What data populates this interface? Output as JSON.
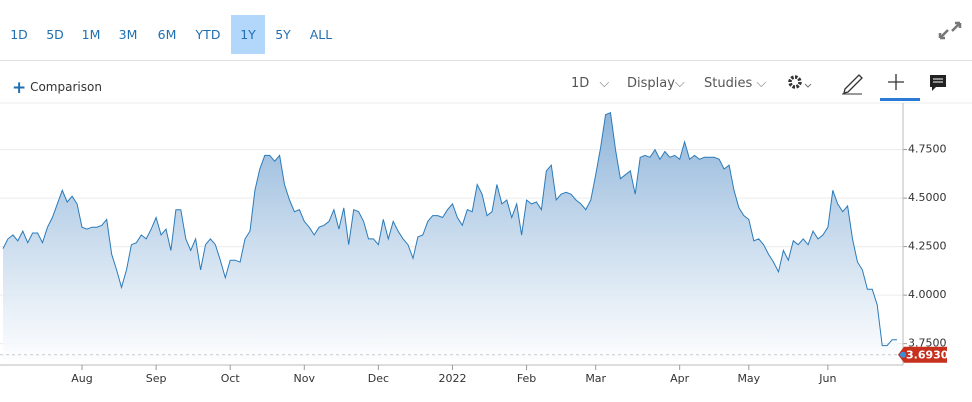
{
  "toolbar": {
    "periods": [
      "1D",
      "5D",
      "1M",
      "3M",
      "6M",
      "YTD",
      "1Y",
      "5Y",
      "ALL"
    ],
    "selected": "1Y"
  },
  "controls": {
    "comparison": "Comparison",
    "interval": "1D",
    "display": "Display",
    "studies": "Studies"
  },
  "chart_data": {
    "type": "area",
    "color": "#2b7bb9",
    "values": [
      4.24,
      4.29,
      4.31,
      4.28,
      4.33,
      4.27,
      4.32,
      4.32,
      4.27,
      4.35,
      4.4,
      4.47,
      4.54,
      4.48,
      4.51,
      4.47,
      4.35,
      4.34,
      4.35,
      4.35,
      4.36,
      4.39,
      4.21,
      4.13,
      4.04,
      4.13,
      4.26,
      4.27,
      4.31,
      4.29,
      4.34,
      4.4,
      4.31,
      4.34,
      4.23,
      4.44,
      4.44,
      4.29,
      4.23,
      4.29,
      4.13,
      4.26,
      4.29,
      4.26,
      4.18,
      4.09,
      4.18,
      4.18,
      4.17,
      4.29,
      4.33,
      4.54,
      4.65,
      4.72,
      4.72,
      4.69,
      4.72,
      4.57,
      4.49,
      4.43,
      4.44,
      4.38,
      4.35,
      4.31,
      4.35,
      4.36,
      4.38,
      4.44,
      4.34,
      4.45,
      4.26,
      4.44,
      4.43,
      4.38,
      4.29,
      4.29,
      4.26,
      4.39,
      4.29,
      4.38,
      4.33,
      4.29,
      4.26,
      4.19,
      4.3,
      4.31,
      4.38,
      4.41,
      4.41,
      4.4,
      4.44,
      4.47,
      4.4,
      4.36,
      4.44,
      4.43,
      4.57,
      4.52,
      4.41,
      4.43,
      4.57,
      4.47,
      4.49,
      4.4,
      4.47,
      4.31,
      4.49,
      4.47,
      4.48,
      4.44,
      4.64,
      4.67,
      4.49,
      4.52,
      4.53,
      4.52,
      4.49,
      4.47,
      4.44,
      4.49,
      4.62,
      4.76,
      4.93,
      4.94,
      4.75,
      4.6,
      4.62,
      4.64,
      4.52,
      4.71,
      4.72,
      4.71,
      4.75,
      4.7,
      4.74,
      4.71,
      4.72,
      4.7,
      4.79,
      4.7,
      4.72,
      4.7,
      4.71,
      4.71,
      4.71,
      4.7,
      4.65,
      4.67,
      4.54,
      4.45,
      4.41,
      4.39,
      4.28,
      4.29,
      4.26,
      4.21,
      4.17,
      4.12,
      4.23,
      4.18,
      4.28,
      4.26,
      4.29,
      4.26,
      4.33,
      4.29,
      4.31,
      4.35,
      4.54,
      4.47,
      4.43,
      4.46,
      4.29,
      4.17,
      4.13,
      4.03,
      4.03,
      3.95,
      3.74,
      3.74,
      3.77,
      3.77
    ],
    "xlim": [
      0,
      181
    ],
    "xticks": [
      {
        "value": 16,
        "label": "Aug"
      },
      {
        "value": 31,
        "label": "Sep"
      },
      {
        "value": 46,
        "label": "Oct"
      },
      {
        "value": 61,
        "label": "Nov"
      },
      {
        "value": 76,
        "label": "Dec"
      },
      {
        "value": 91,
        "label": "2022"
      },
      {
        "value": 106,
        "label": "Feb"
      },
      {
        "value": 120,
        "label": "Mar"
      },
      {
        "value": 137,
        "label": "Apr"
      },
      {
        "value": 151,
        "label": "May"
      },
      {
        "value": 167,
        "label": "Jun"
      }
    ],
    "ylim": [
      3.64,
      4.99
    ],
    "yticks": [
      {
        "value": 3.75,
        "label": "3.7500"
      },
      {
        "value": 4.0,
        "label": "4.0000"
      },
      {
        "value": 4.25,
        "label": "4.2500"
      },
      {
        "value": 4.5,
        "label": "4.5000"
      },
      {
        "value": 4.75,
        "label": "4.7500"
      }
    ],
    "grid": true,
    "last_price": {
      "value": 3.693,
      "label": "3.6930"
    }
  }
}
